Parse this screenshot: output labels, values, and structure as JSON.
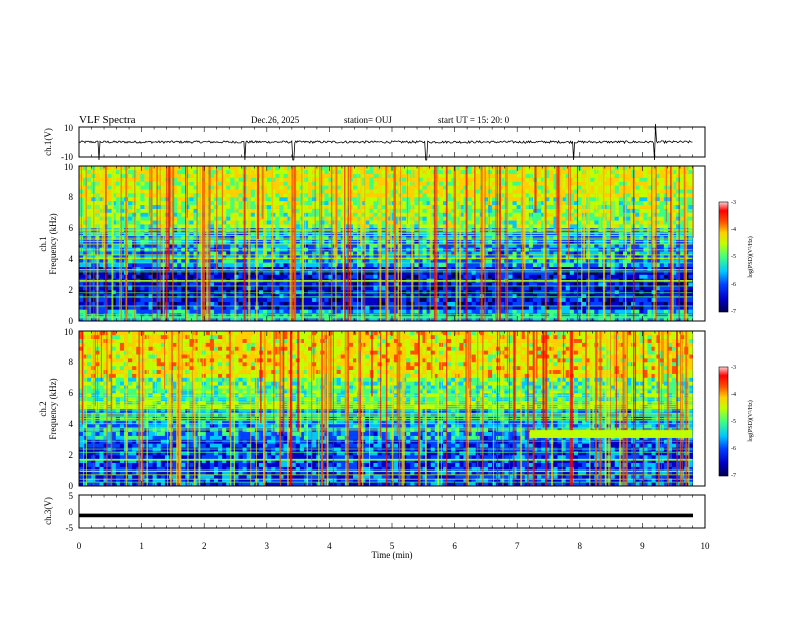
{
  "header": {
    "title": "VLF Spectra",
    "date": "Dec.26, 2025",
    "station": "station= OUJ",
    "start": "start  UT =   15: 20: 0"
  },
  "colors": {
    "frame": "#000000",
    "signal": "#000000",
    "colormap": [
      "#000050",
      "#0000c8",
      "#0040ff",
      "#00c8ff",
      "#40ff80",
      "#c0ff00",
      "#ffd000",
      "#ff5000",
      "#ff0000",
      "#ffd0d0"
    ]
  },
  "chart_data": [
    {
      "type": "line",
      "name": "ch1-waveform",
      "ylabel": "ch.1(V)",
      "ylim": [
        -10,
        10
      ],
      "yticks": [
        "10",
        "-10"
      ],
      "baseline": 0,
      "spikes_min": [
        0.32,
        2.65,
        3.42,
        5.55,
        7.9,
        9.2
      ]
    },
    {
      "type": "heatmap",
      "name": "ch1-spectrogram",
      "ylabel": [
        "ch.1",
        "Frequency (kHz)"
      ],
      "xlim": [
        0,
        10
      ],
      "ylim": [
        0,
        10
      ],
      "data_extent_min": 9.8,
      "yticks": [
        "0",
        "2",
        "4",
        "6",
        "8",
        "10"
      ],
      "bands": [
        {
          "from": 0,
          "to": 0.8,
          "level": 0.3
        },
        {
          "from": 0.8,
          "to": 3.5,
          "level": 0.15
        },
        {
          "from": 3.5,
          "to": 6.0,
          "level": 0.3
        },
        {
          "from": 6.0,
          "to": 8.0,
          "level": 0.5
        },
        {
          "from": 8.0,
          "to": 10.0,
          "level": 0.58
        }
      ],
      "colorbar": {
        "label": "log(PSD)(V²/Hz)",
        "range": [
          -7,
          -3
        ],
        "ticks": [
          "-3",
          "-4",
          "-5",
          "-6",
          "-7"
        ]
      }
    },
    {
      "type": "heatmap",
      "name": "ch2-spectrogram",
      "ylabel": [
        "ch.2",
        "Frequency (kHz)"
      ],
      "xlim": [
        0,
        10
      ],
      "ylim": [
        0,
        10
      ],
      "data_extent_min": 9.8,
      "yticks": [
        "0",
        "2",
        "4",
        "6",
        "8",
        "10"
      ],
      "bands": [
        {
          "from": 0,
          "to": 3.0,
          "level": 0.2
        },
        {
          "from": 3.0,
          "to": 5.0,
          "level": 0.3
        },
        {
          "from": 5.0,
          "to": 7.0,
          "level": 0.45
        },
        {
          "from": 7.0,
          "to": 10.0,
          "level": 0.62
        }
      ],
      "carrier": {
        "t_from": 7.2,
        "t_to": 9.8,
        "f_from": 3.1,
        "f_to": 3.6,
        "level": 0.58
      },
      "colorbar": {
        "label": "log(PSD)(V²/Hz)",
        "range": [
          -7,
          -3
        ],
        "ticks": [
          "-3",
          "-4",
          "-5",
          "-6",
          "-7"
        ]
      }
    },
    {
      "type": "line",
      "name": "ch3-signal",
      "ylabel": "ch.3(V)",
      "ylim": [
        -5,
        5
      ],
      "yticks": [
        "5",
        "0",
        "-5"
      ],
      "value": -1.2
    }
  ],
  "xaxis": {
    "label": "Time (min)",
    "ticks": [
      "0",
      "1",
      "2",
      "3",
      "4",
      "5",
      "6",
      "7",
      "8",
      "9",
      "10"
    ]
  }
}
